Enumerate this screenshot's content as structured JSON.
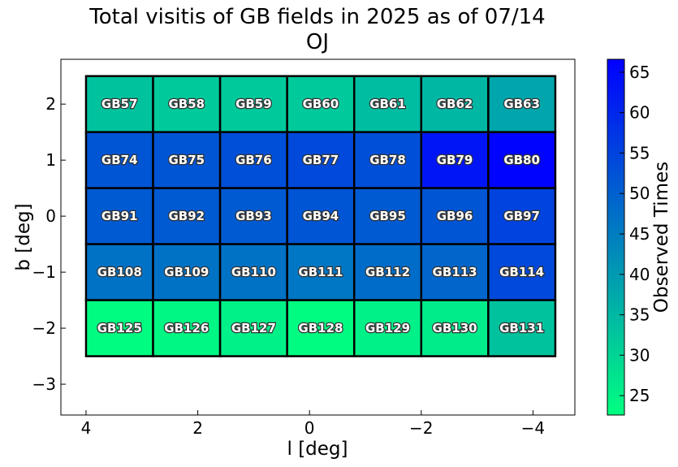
{
  "title_line1": "Total visitis of GB fields in 2025 as of 07/14",
  "title_line2": "OJ",
  "chart_data": {
    "type": "heatmap",
    "title": "Total visitis of GB fields in 2025 as of 07/14\nOJ",
    "xlabel": "l [deg]",
    "ylabel": "b [deg]",
    "xlim": [
      4.45,
      -4.75
    ],
    "ylim": [
      -3.55,
      2.8
    ],
    "x_inverted": true,
    "xticks": [
      4,
      2,
      0,
      -2,
      -4
    ],
    "xtick_labels": [
      "4",
      "2",
      "0",
      "−2",
      "−4"
    ],
    "yticks": [
      2,
      1,
      0,
      -1,
      -2,
      -3
    ],
    "ytick_labels": [
      "2",
      "1",
      "0",
      "−1",
      "−2",
      "−3"
    ],
    "grid": false,
    "cell_width_deg": 1.2,
    "cell_height_deg": 1.0,
    "columns_l_center": [
      3.4,
      2.2,
      1.0,
      -0.2,
      -1.4,
      -2.6,
      -3.8
    ],
    "rows": [
      {
        "b_center": 2.0,
        "fields": [
          "GB57",
          "GB58",
          "GB59",
          "GB60",
          "GB61",
          "GB62",
          "GB63"
        ],
        "values": [
          33,
          32,
          32,
          32,
          34,
          35,
          38
        ]
      },
      {
        "b_center": 1.0,
        "fields": [
          "GB74",
          "GB75",
          "GB76",
          "GB77",
          "GB78",
          "GB79",
          "GB80"
        ],
        "values": [
          52,
          52,
          53,
          54,
          53,
          63,
          66
        ]
      },
      {
        "b_center": 0.0,
        "fields": [
          "GB91",
          "GB92",
          "GB93",
          "GB94",
          "GB95",
          "GB96",
          "GB97"
        ],
        "values": [
          51,
          51,
          51,
          52,
          51,
          52,
          55
        ]
      },
      {
        "b_center": -1.0,
        "fields": [
          "GB108",
          "GB109",
          "GB110",
          "GB111",
          "GB112",
          "GB113",
          "GB114"
        ],
        "values": [
          47,
          47,
          47,
          46,
          48,
          49,
          54
        ]
      },
      {
        "b_center": -2.0,
        "fields": [
          "GB125",
          "GB126",
          "GB127",
          "GB128",
          "GB129",
          "GB130",
          "GB131"
        ],
        "values": [
          23,
          24,
          25,
          23,
          25,
          26,
          33
        ]
      }
    ],
    "colorbar": {
      "label": "Observed Times",
      "vmin": 22.6,
      "vmax": 66.6,
      "ticks": [
        25,
        30,
        35,
        40,
        45,
        50,
        55,
        60,
        65
      ],
      "colormap": "winter_r",
      "color_low": "#00ff80",
      "color_high": "#0000ff"
    }
  }
}
